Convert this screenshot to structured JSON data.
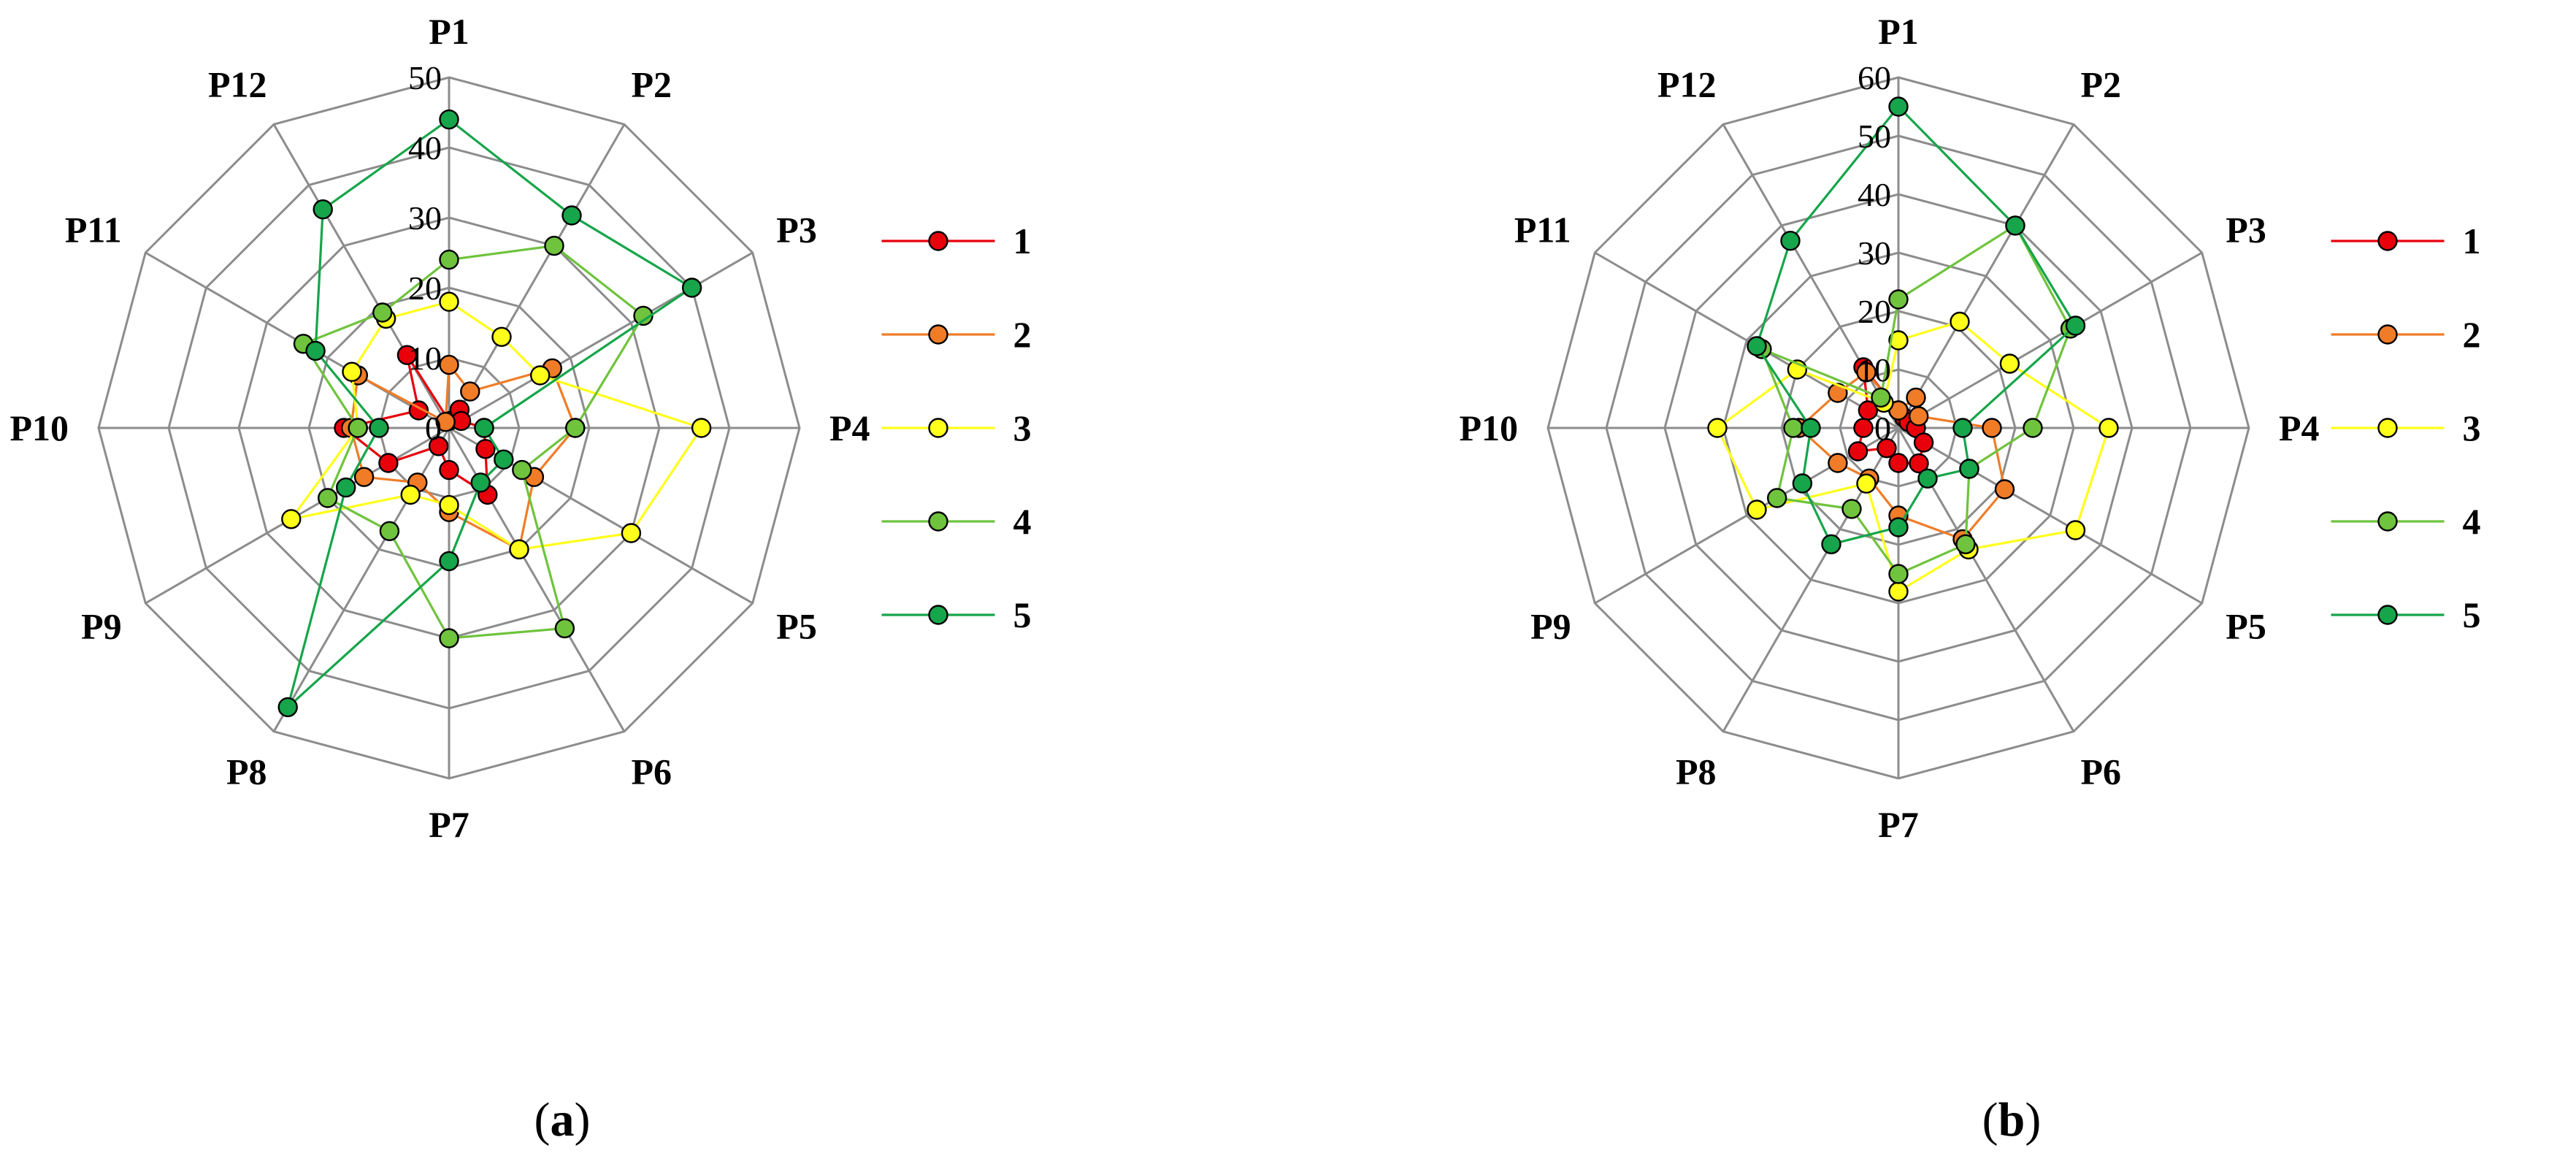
{
  "axes": [
    "P1",
    "P2",
    "P3",
    "P4",
    "P5",
    "P6",
    "P7",
    "P8",
    "P9",
    "P10",
    "P11",
    "P12"
  ],
  "colors": {
    "1": "#e8000b",
    "2": "#f07c27",
    "3": "#ffff1a",
    "4": "#6fc33d",
    "5": "#16a54a"
  },
  "panels": [
    {
      "open": "(",
      "letter": "a",
      "close": ")"
    },
    {
      "open": "(",
      "letter": "b",
      "close": ")"
    }
  ],
  "chart_data": [
    {
      "type": "radar",
      "title": "",
      "axes": [
        "P1",
        "P2",
        "P3",
        "P4",
        "P5",
        "P6",
        "P7",
        "P8",
        "P9",
        "P10",
        "P11",
        "P12"
      ],
      "rlim": [
        0,
        50
      ],
      "ticks": [
        0,
        10,
        20,
        30,
        40,
        50
      ],
      "legend": "right",
      "series": [
        {
          "name": "1",
          "values": [
            1,
            3,
            2,
            5,
            6,
            11,
            6,
            3,
            10,
            15,
            5,
            12
          ]
        },
        {
          "name": "2",
          "values": [
            9,
            6,
            17,
            18,
            14,
            20,
            12,
            9,
            14,
            14,
            15,
            1
          ]
        },
        {
          "name": "3",
          "values": [
            18,
            15,
            15,
            36,
            30,
            20,
            11,
            11,
            26,
            13,
            16,
            18
          ]
        },
        {
          "name": "4",
          "values": [
            24,
            30,
            32,
            18,
            12,
            33,
            30,
            17,
            20,
            13,
            24,
            19
          ]
        },
        {
          "name": "5",
          "values": [
            44,
            35,
            40,
            5,
            9,
            9,
            19,
            46,
            17,
            10,
            22,
            36
          ]
        }
      ]
    },
    {
      "type": "radar",
      "title": "",
      "axes": [
        "P1",
        "P2",
        "P3",
        "P4",
        "P5",
        "P6",
        "P7",
        "P8",
        "P9",
        "P10",
        "P11",
        "P12"
      ],
      "rlim": [
        0,
        60
      ],
      "ticks": [
        0,
        10,
        20,
        30,
        40,
        50,
        60
      ],
      "legend": "right",
      "series": [
        {
          "name": "1",
          "values": [
            3,
            2,
            2,
            3,
            5,
            7,
            6,
            4,
            8,
            6,
            6,
            12
          ]
        },
        {
          "name": "2",
          "values": [
            3,
            6,
            4,
            16,
            21,
            22,
            15,
            10,
            12,
            17,
            12,
            11
          ]
        },
        {
          "name": "3",
          "values": [
            15,
            21,
            22,
            36,
            35,
            24,
            28,
            11,
            28,
            31,
            20,
            5
          ]
        },
        {
          "name": "4",
          "values": [
            22,
            40,
            34,
            23,
            14,
            23,
            25,
            16,
            24,
            18,
            27,
            6
          ]
        },
        {
          "name": "5",
          "values": [
            55,
            40,
            35,
            11,
            14,
            10,
            17,
            23,
            19,
            15,
            28,
            37
          ]
        }
      ]
    }
  ]
}
